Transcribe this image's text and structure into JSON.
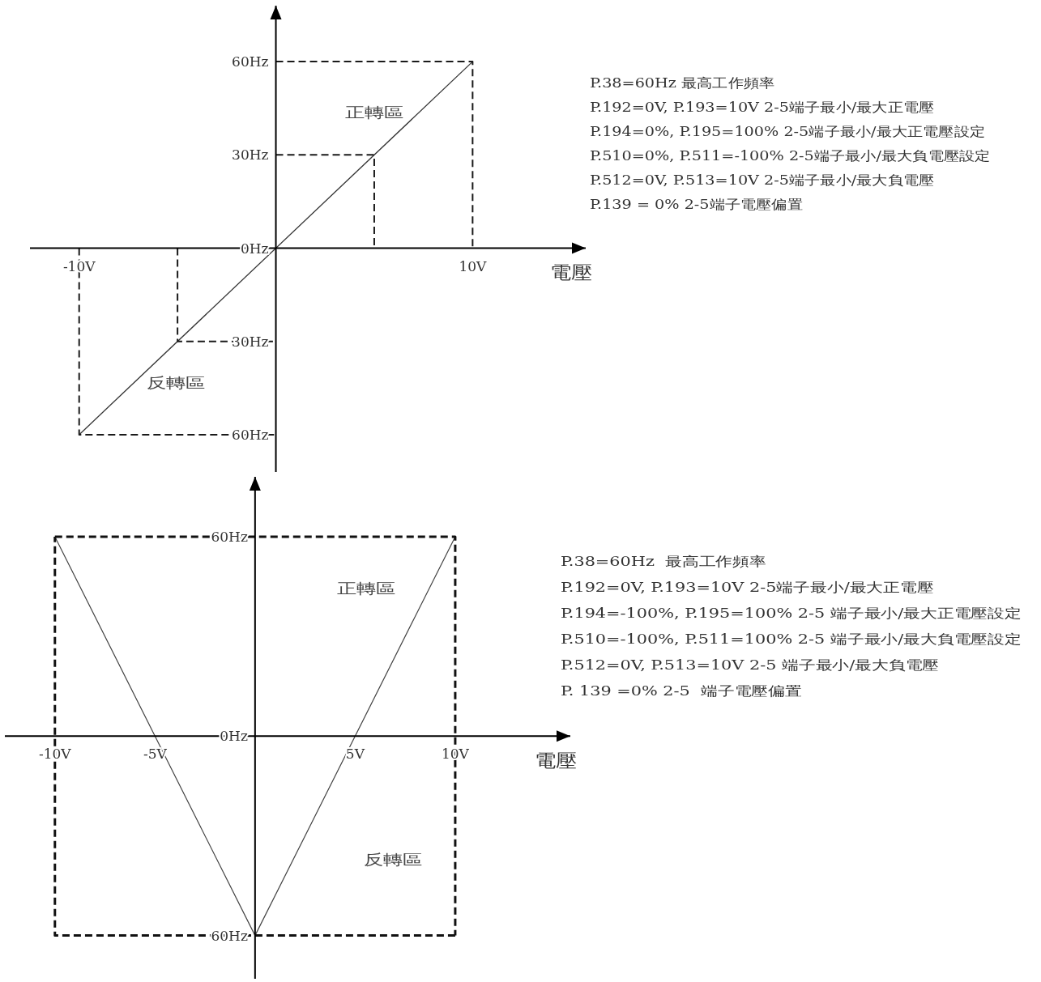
{
  "chart_data": [
    {
      "type": "line",
      "xlabel": "電壓",
      "xlim": [
        -12.5,
        15.75
      ],
      "ylim": [
        -72,
        78
      ],
      "xticks": [
        {
          "value": -10,
          "label": "-10V"
        },
        {
          "value": 10,
          "label": "10V"
        }
      ],
      "yticks": [
        {
          "value": -60,
          "label": "60Hz"
        },
        {
          "value": -30,
          "label": "30Hz"
        },
        {
          "value": 0,
          "label": "0Hz"
        },
        {
          "value": 30,
          "label": "30Hz"
        },
        {
          "value": 60,
          "label": "60Hz"
        }
      ],
      "marker": "none",
      "series": [
        {
          "x": [
            -10,
            10
          ],
          "values": [
            -60,
            60
          ],
          "color": "#333333",
          "line_style": "solid"
        },
        {
          "x": [
            0,
            10,
            10
          ],
          "values": [
            60,
            60,
            0
          ],
          "color": "#1a1a1a",
          "line_style": "dashed"
        },
        {
          "x": [
            0,
            5,
            5
          ],
          "values": [
            30,
            30,
            0
          ],
          "color": "#1a1a1a",
          "line_style": "dashed"
        },
        {
          "x": [
            -5,
            -5,
            0
          ],
          "values": [
            0,
            -30,
            -30
          ],
          "color": "#1a1a1a",
          "line_style": "dashed"
        },
        {
          "x": [
            -10,
            -10,
            0
          ],
          "values": [
            0,
            -60,
            -60
          ],
          "color": "#1a1a1a",
          "line_style": "dashed"
        }
      ],
      "annotations": [
        "正轉區",
        "反轉區",
        "P.38=60Hz 最高工作頻率",
        "P.192=0V, P.193=10V 2-5端子最小/最大正電壓",
        "P.194=0%, P.195=100% 2-5端子最小/最大正電壓設定",
        "P.510=0%, P.511=-100% 2-5端子最小/最大負電壓設定",
        "P.512=0V, P.513=10V 2-5端子最小/最大負電壓",
        "P.139 = 0% 2-5端子電壓偏置"
      ]
    },
    {
      "type": "line",
      "xlabel": "電壓",
      "xlim": [
        -12.5,
        15.75
      ],
      "ylim": [
        -73,
        78
      ],
      "xticks": [
        {
          "value": -10,
          "label": "-10V"
        },
        {
          "value": -5,
          "label": "-5V"
        },
        {
          "value": 5,
          "label": "5V"
        },
        {
          "value": 10,
          "label": "10V"
        }
      ],
      "yticks": [
        {
          "value": -60,
          "label": "60Hz"
        },
        {
          "value": 0,
          "label": "0Hz"
        },
        {
          "value": 60,
          "label": "60Hz"
        }
      ],
      "marker": "none",
      "series": [
        {
          "x": [
            -10,
            0,
            10
          ],
          "values": [
            60,
            -60,
            60
          ],
          "color": "#444444",
          "line_style": "solid"
        },
        {
          "x": [
            -10,
            10,
            10
          ],
          "values": [
            60,
            60,
            -60
          ],
          "color": "#111111",
          "line_style": "dashed"
        },
        {
          "x": [
            10,
            -10,
            -10
          ],
          "values": [
            -60,
            -60,
            60
          ],
          "color": "#111111",
          "line_style": "dashed"
        }
      ],
      "annotations": [
        "正轉區",
        "反轉區",
        "P.38=60Hz  最高工作頻率",
        "P.192=0V, P.193=10V 2-5端子最小/最大正電壓",
        "P.194=-100%, P.195=100% 2-5 端子最小/最大正電壓設定",
        "P.510=-100%, P.511=100% 2-5 端子最小/最大負電壓設定",
        "P.512=0V, P.513=10V 2-5 端子最小/最大負電壓",
        "P. 139 =0% 2-5  端子電壓偏置"
      ]
    }
  ]
}
